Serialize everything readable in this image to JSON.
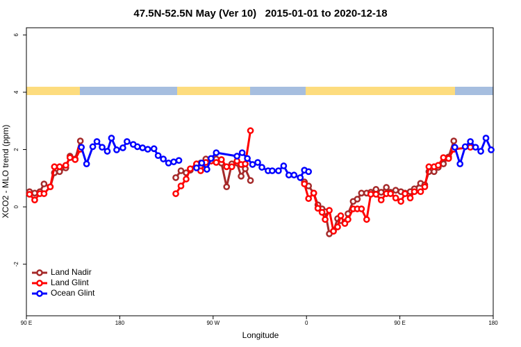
{
  "chart_data": {
    "type": "line",
    "title": "47.5N-52.5N May (Ver 10)   2015-01-01 to 2020-12-18",
    "x_label": "Longitude",
    "y_label": "XCO2 - MLO trend (ppm)",
    "xlim": [
      -270,
      180
    ],
    "xticks": [
      {
        "value": -270,
        "label": "90 E"
      },
      {
        "value": -180,
        "label": "180"
      },
      {
        "value": -90,
        "label": "90 W"
      },
      0,
      {
        "value": 90,
        "label": "90 E"
      },
      180
    ],
    "ylim": [
      -3.8,
      6.25
    ],
    "yticks": [
      -2,
      0,
      2,
      4,
      6
    ],
    "legend": "bottom-left",
    "series": [
      {
        "name": "Land Nadir",
        "color": "#a52a2a",
        "x": [
          -267,
          -262,
          -257,
          -253,
          -247,
          -243,
          -238,
          -232,
          -228,
          -223,
          -218,
          -170,
          -126,
          -121,
          -116,
          -112,
          -106,
          -102,
          -97,
          -92,
          -87,
          -82,
          -77,
          -72,
          -67,
          -63,
          -59,
          -54,
          -30,
          -2,
          2,
          7,
          11,
          15,
          18,
          22,
          26,
          30,
          33,
          37,
          40,
          45,
          49,
          53,
          58,
          62,
          67,
          72,
          77,
          81,
          86,
          91,
          95,
          100,
          104,
          110,
          114,
          118,
          123,
          127,
          132,
          137,
          142
        ],
        "values": [
          0.53,
          0.48,
          0.53,
          0.8,
          0.7,
          1.19,
          1.23,
          1.36,
          1.77,
          1.67,
          2.3,
          null,
          1.02,
          1.26,
          1.19,
          1.28,
          1.48,
          1.53,
          1.67,
          1.6,
          1.67,
          1.53,
          0.7,
          1.5,
          1.53,
          1.07,
          1.33,
          0.92,
          null,
          0.87,
          0.73,
          0.48,
          0.07,
          -0.07,
          -0.17,
          -0.94,
          -0.85,
          -0.41,
          -0.48,
          -0.53,
          -0.24,
          0.19,
          0.27,
          0.48,
          0.48,
          0.51,
          0.61,
          0.51,
          0.68,
          0.51,
          0.58,
          0.53,
          0.48,
          0.53,
          0.63,
          0.82,
          0.77,
          1.23,
          1.23,
          1.38,
          1.5,
          1.74,
          2.3
        ]
      },
      {
        "name": "Land Glint",
        "color": "#ff0000",
        "x": [
          -267,
          -262,
          -257,
          -253,
          -247,
          -243,
          -238,
          -232,
          -228,
          -223,
          -218,
          -170,
          -126,
          -121,
          -116,
          -112,
          -106,
          -102,
          -97,
          -92,
          -87,
          -82,
          -77,
          -72,
          -67,
          -63,
          -59,
          -54,
          -30,
          -2,
          2,
          7,
          11,
          15,
          18,
          22,
          26,
          30,
          33,
          37,
          40,
          45,
          49,
          53,
          58,
          62,
          67,
          72,
          77,
          81,
          86,
          91,
          95,
          100,
          104,
          110,
          114,
          118,
          123,
          127,
          132,
          137,
          142,
          158
        ],
        "values": [
          0.44,
          0.24,
          0.46,
          0.46,
          0.7,
          1.4,
          1.4,
          1.45,
          1.72,
          1.65,
          2.01,
          null,
          0.46,
          0.73,
          0.97,
          1.33,
          1.5,
          1.26,
          1.55,
          1.6,
          1.55,
          1.65,
          1.4,
          1.4,
          1.6,
          1.48,
          1.5,
          2.66,
          null,
          0.8,
          0.29,
          0.48,
          -0.05,
          -0.19,
          -0.44,
          -0.12,
          -0.85,
          -0.7,
          -0.31,
          -0.58,
          -0.44,
          -0.07,
          -0.07,
          -0.07,
          -0.44,
          0.44,
          0.44,
          0.24,
          0.46,
          0.46,
          0.31,
          0.19,
          0.46,
          0.31,
          0.53,
          0.53,
          0.7,
          1.4,
          1.4,
          1.45,
          1.72,
          1.69,
          2.01,
          2.08
        ]
      },
      {
        "name": "Ocean Glint",
        "color": "#0000ff",
        "x": [
          -217,
          -212,
          -206,
          -202,
          -197,
          -192,
          -188,
          -183,
          -177,
          -173,
          -167,
          -163,
          -158,
          -153,
          -147,
          -143,
          -138,
          -133,
          -128,
          -123,
          -115,
          -106,
          -101,
          -96,
          -92,
          -87,
          -67,
          -62,
          -57,
          -52,
          -47,
          -43,
          -37,
          -33,
          -27,
          -22,
          -17,
          -12,
          -6,
          -2,
          2,
          70,
          143,
          148,
          153,
          158,
          163,
          168,
          173,
          178
        ],
        "values": [
          2.08,
          1.5,
          2.1,
          2.28,
          2.08,
          1.94,
          2.4,
          1.99,
          2.06,
          2.28,
          2.18,
          2.1,
          2.06,
          2.01,
          2.03,
          1.79,
          1.67,
          1.53,
          1.57,
          1.62,
          null,
          1.36,
          1.53,
          1.31,
          1.69,
          1.89,
          1.77,
          1.89,
          1.69,
          1.48,
          1.55,
          1.38,
          1.26,
          1.26,
          1.26,
          1.43,
          1.11,
          1.11,
          1.02,
          1.28,
          1.23,
          null,
          2.08,
          1.5,
          2.1,
          2.28,
          2.08,
          1.94,
          2.4,
          1.99
        ]
      }
    ]
  }
}
